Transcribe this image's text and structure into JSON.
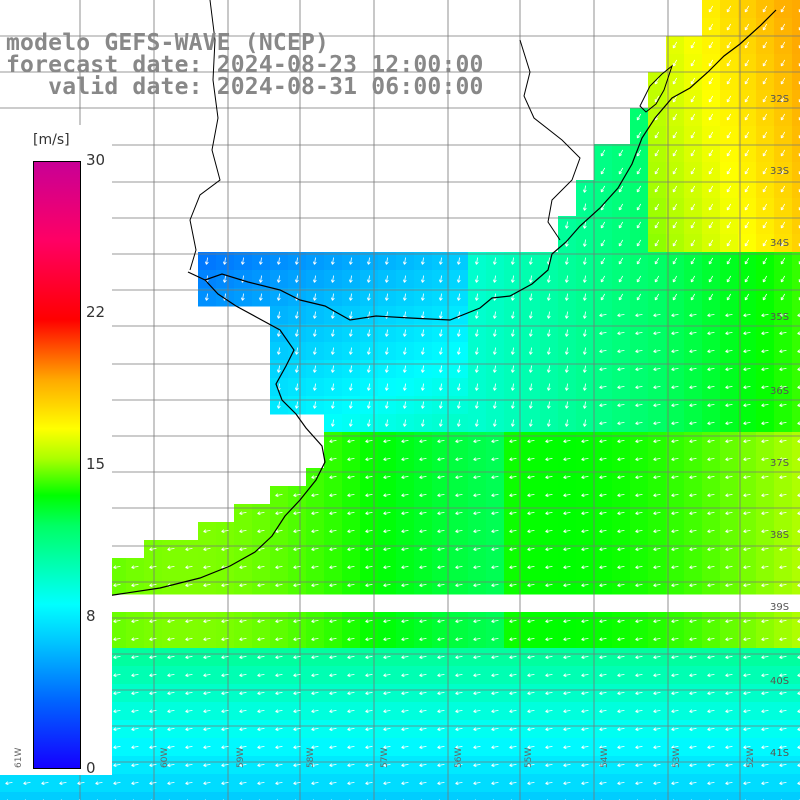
{
  "title": {
    "line1": "modelo GEFS-WAVE (NCEP)",
    "line2": "forecast date: 2024-08-23 12:00:00",
    "line3": "   valid date: 2024-08-31 06:00:00"
  },
  "colorbar": {
    "unit": "[m/s]",
    "ticks": [
      "30",
      "22",
      "15",
      "8",
      "0"
    ],
    "min": 0,
    "max": 30
  },
  "latitude_labels": [
    "32S",
    "33S",
    "34S",
    "35S",
    "36S",
    "37S",
    "38S",
    "39S",
    "40S",
    "41S"
  ],
  "longitude_labels": [
    "61W",
    "60W",
    "59W",
    "58W",
    "57W",
    "56W",
    "55W",
    "54W",
    "53W",
    "52W"
  ],
  "colors": {
    "land": "#ffffff",
    "grid": "#777777",
    "coast": "#000000",
    "arrow": "#ffffff"
  },
  "field": {
    "quantity": "wind speed",
    "unit": "m/s"
  }
}
